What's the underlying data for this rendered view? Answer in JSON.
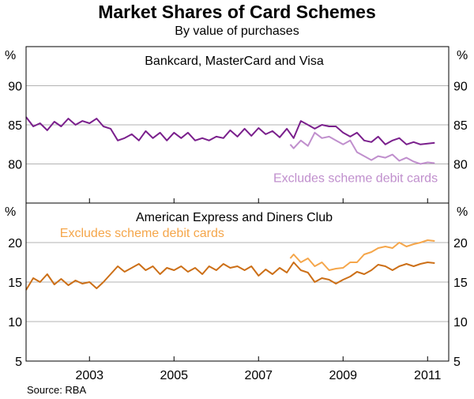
{
  "title": "Market Shares of Card Schemes",
  "subtitle": "By value of purchases",
  "source": "Source: RBA",
  "colors": {
    "visa_mc": "#7a1f8c",
    "visa_mc_excl": "#c08fcd",
    "amex": "#cc6f17",
    "amex_excl": "#f5a64a",
    "grid": "#b3b3b3",
    "axis": "#000000"
  },
  "chart_data": [
    {
      "type": "line",
      "panel": "top",
      "title": "Bankcard, MasterCard and Visa",
      "unit": "%",
      "ylim": [
        75,
        95
      ],
      "yticks": [
        80,
        85,
        90
      ],
      "xlim": [
        2001.5,
        2011.5
      ],
      "xticks": [
        "2003",
        "2005",
        "2007",
        "2009",
        "2011"
      ],
      "annotations": [
        "Excludes scheme debit cards"
      ],
      "series": [
        {
          "name": "Bankcard, MasterCard and Visa",
          "color_key": "visa_mc",
          "x": [
            2001.5,
            2001.67,
            2001.83,
            2002.0,
            2002.17,
            2002.33,
            2002.5,
            2002.67,
            2002.83,
            2003.0,
            2003.17,
            2003.33,
            2003.5,
            2003.67,
            2003.83,
            2004.0,
            2004.17,
            2004.33,
            2004.5,
            2004.67,
            2004.83,
            2005.0,
            2005.17,
            2005.33,
            2005.5,
            2005.67,
            2005.83,
            2006.0,
            2006.17,
            2006.33,
            2006.5,
            2006.67,
            2006.83,
            2007.0,
            2007.17,
            2007.33,
            2007.5,
            2007.67,
            2007.83,
            2008.0,
            2008.17,
            2008.33,
            2008.5,
            2008.67,
            2008.83,
            2009.0,
            2009.17,
            2009.33,
            2009.5,
            2009.67,
            2009.83,
            2010.0,
            2010.17,
            2010.33,
            2010.5,
            2010.67,
            2010.83,
            2011.0,
            2011.17
          ],
          "values": [
            86.0,
            84.8,
            85.2,
            84.3,
            85.4,
            84.8,
            85.8,
            85.0,
            85.5,
            85.2,
            85.8,
            84.8,
            84.5,
            83.0,
            83.3,
            83.8,
            83.0,
            84.2,
            83.3,
            84.0,
            83.0,
            84.0,
            83.3,
            84.0,
            83.0,
            83.3,
            83.0,
            83.5,
            83.3,
            84.3,
            83.5,
            84.5,
            83.6,
            84.6,
            83.8,
            84.2,
            83.4,
            84.5,
            83.3,
            85.5,
            85.0,
            84.5,
            85.0,
            84.8,
            84.8,
            84.0,
            83.5,
            84.0,
            83.0,
            82.8,
            83.5,
            82.5,
            83.0,
            83.3,
            82.5,
            82.8,
            82.5,
            82.6,
            82.7
          ]
        },
        {
          "name": "Excludes scheme debit cards",
          "color_key": "visa_mc_excl",
          "x": [
            2007.75,
            2007.83,
            2008.0,
            2008.17,
            2008.33,
            2008.5,
            2008.67,
            2008.83,
            2009.0,
            2009.17,
            2009.33,
            2009.5,
            2009.67,
            2009.83,
            2010.0,
            2010.17,
            2010.33,
            2010.5,
            2010.67,
            2010.83,
            2011.0,
            2011.17
          ],
          "values": [
            82.5,
            82.0,
            83.0,
            82.3,
            84.0,
            83.3,
            83.5,
            83.0,
            82.5,
            83.0,
            81.5,
            81.0,
            80.5,
            81.0,
            80.8,
            81.2,
            80.4,
            80.8,
            80.3,
            80.0,
            80.2,
            80.1
          ]
        }
      ]
    },
    {
      "type": "line",
      "panel": "bottom",
      "title": "American Express and Diners Club",
      "unit": "%",
      "ylim": [
        5,
        25
      ],
      "yticks": [
        5,
        10,
        15,
        20
      ],
      "xlim": [
        2001.5,
        2011.5
      ],
      "xticks": [
        "2003",
        "2005",
        "2007",
        "2009",
        "2011"
      ],
      "annotations": [
        "Excludes scheme debit cards"
      ],
      "series": [
        {
          "name": "American Express and Diners Club",
          "color_key": "amex",
          "x": [
            2001.5,
            2001.67,
            2001.83,
            2002.0,
            2002.17,
            2002.33,
            2002.5,
            2002.67,
            2002.83,
            2003.0,
            2003.17,
            2003.33,
            2003.5,
            2003.67,
            2003.83,
            2004.0,
            2004.17,
            2004.33,
            2004.5,
            2004.67,
            2004.83,
            2005.0,
            2005.17,
            2005.33,
            2005.5,
            2005.67,
            2005.83,
            2006.0,
            2006.17,
            2006.33,
            2006.5,
            2006.67,
            2006.83,
            2007.0,
            2007.17,
            2007.33,
            2007.5,
            2007.67,
            2007.83,
            2008.0,
            2008.17,
            2008.33,
            2008.5,
            2008.67,
            2008.83,
            2009.0,
            2009.17,
            2009.33,
            2009.5,
            2009.67,
            2009.83,
            2010.0,
            2010.17,
            2010.33,
            2010.5,
            2010.67,
            2010.83,
            2011.0,
            2011.17
          ],
          "values": [
            14.0,
            15.5,
            15.0,
            16.0,
            14.7,
            15.4,
            14.6,
            15.2,
            14.8,
            15.0,
            14.2,
            15.0,
            16.0,
            17.0,
            16.3,
            16.8,
            17.3,
            16.5,
            17.0,
            16.0,
            16.8,
            16.5,
            17.0,
            16.3,
            16.8,
            16.0,
            17.0,
            16.5,
            17.3,
            16.8,
            17.0,
            16.5,
            17.0,
            15.8,
            16.6,
            16.0,
            16.8,
            16.2,
            17.5,
            16.5,
            16.2,
            15.0,
            15.5,
            15.3,
            14.8,
            15.3,
            15.7,
            16.3,
            16.0,
            16.5,
            17.2,
            17.0,
            16.5,
            17.0,
            17.3,
            17.0,
            17.3,
            17.5,
            17.4
          ]
        },
        {
          "name": "Excludes scheme debit cards",
          "color_key": "amex_excl",
          "x": [
            2007.75,
            2007.83,
            2008.0,
            2008.17,
            2008.33,
            2008.5,
            2008.67,
            2008.83,
            2009.0,
            2009.17,
            2009.33,
            2009.5,
            2009.67,
            2009.83,
            2010.0,
            2010.17,
            2010.33,
            2010.5,
            2010.67,
            2010.83,
            2011.0,
            2011.17
          ],
          "values": [
            18.0,
            18.5,
            17.5,
            18.0,
            17.0,
            17.5,
            16.5,
            16.7,
            16.8,
            17.5,
            17.5,
            18.5,
            18.8,
            19.3,
            19.5,
            19.3,
            20.0,
            19.5,
            19.8,
            20.0,
            20.3,
            20.2
          ]
        }
      ]
    }
  ]
}
